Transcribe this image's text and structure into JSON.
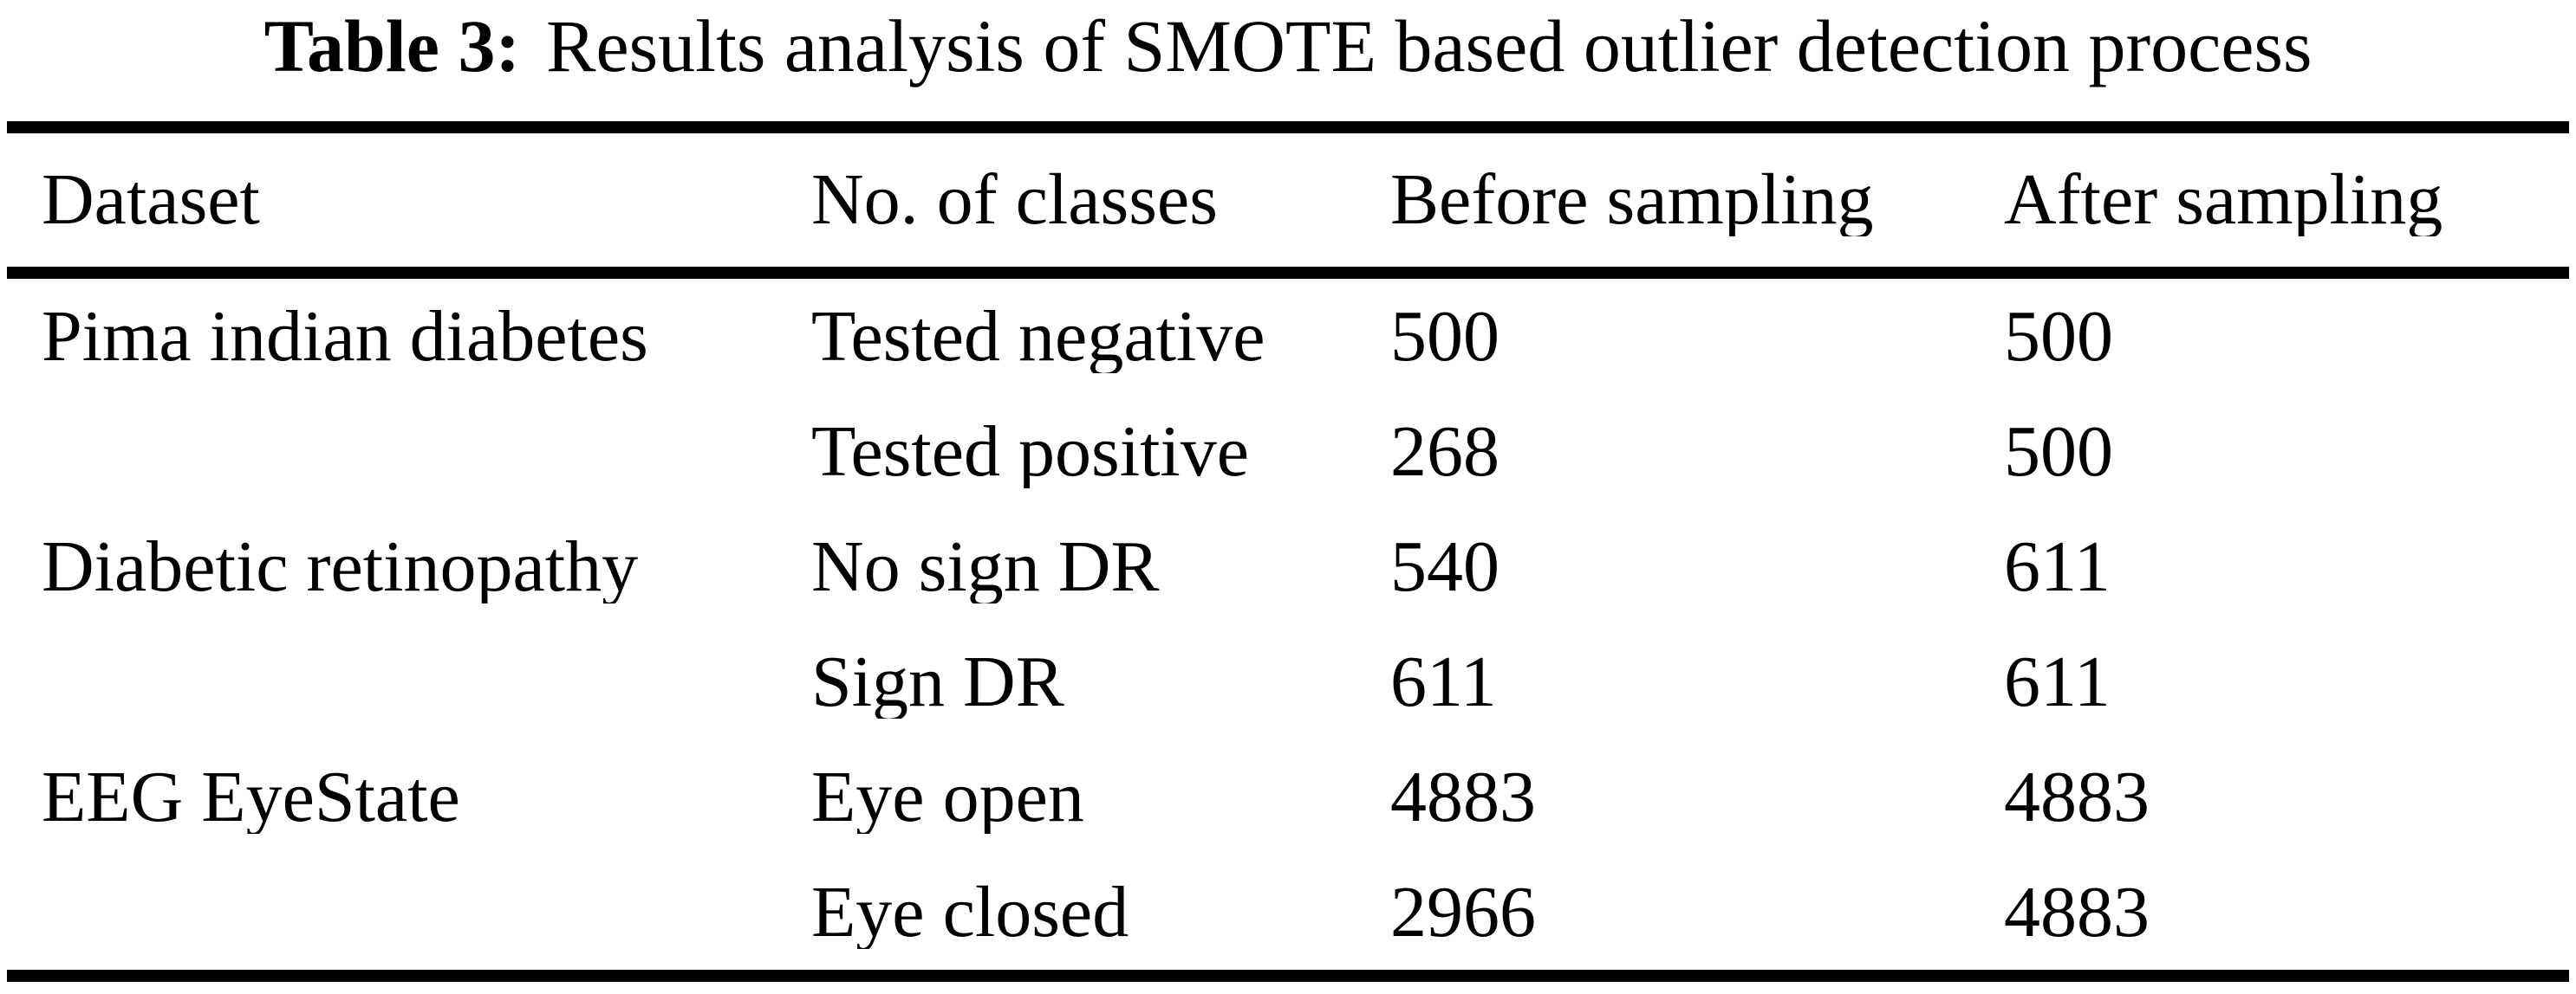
{
  "caption": {
    "label": "Table 3:",
    "text": "Results analysis of SMOTE based outlier detection process"
  },
  "chart_data": {
    "type": "table",
    "title": "Table 3: Results analysis of SMOTE based outlier detection process",
    "columns": [
      "Dataset",
      "No. of classes",
      "Before sampling",
      "After sampling"
    ],
    "rows": [
      [
        "Pima indian diabetes",
        "Tested negative",
        "500",
        "500"
      ],
      [
        "",
        "Tested positive",
        "268",
        "500"
      ],
      [
        "Diabetic retinopathy",
        "No sign DR",
        "540",
        "611"
      ],
      [
        "",
        "Sign DR",
        "611",
        "611"
      ],
      [
        "EEG EyeState",
        "Eye open",
        "4883",
        "4883"
      ],
      [
        "",
        "Eye closed",
        "2966",
        "4883"
      ]
    ]
  },
  "colors": {
    "background": "#ffffff",
    "text": "#000000",
    "rule": "#000000"
  }
}
